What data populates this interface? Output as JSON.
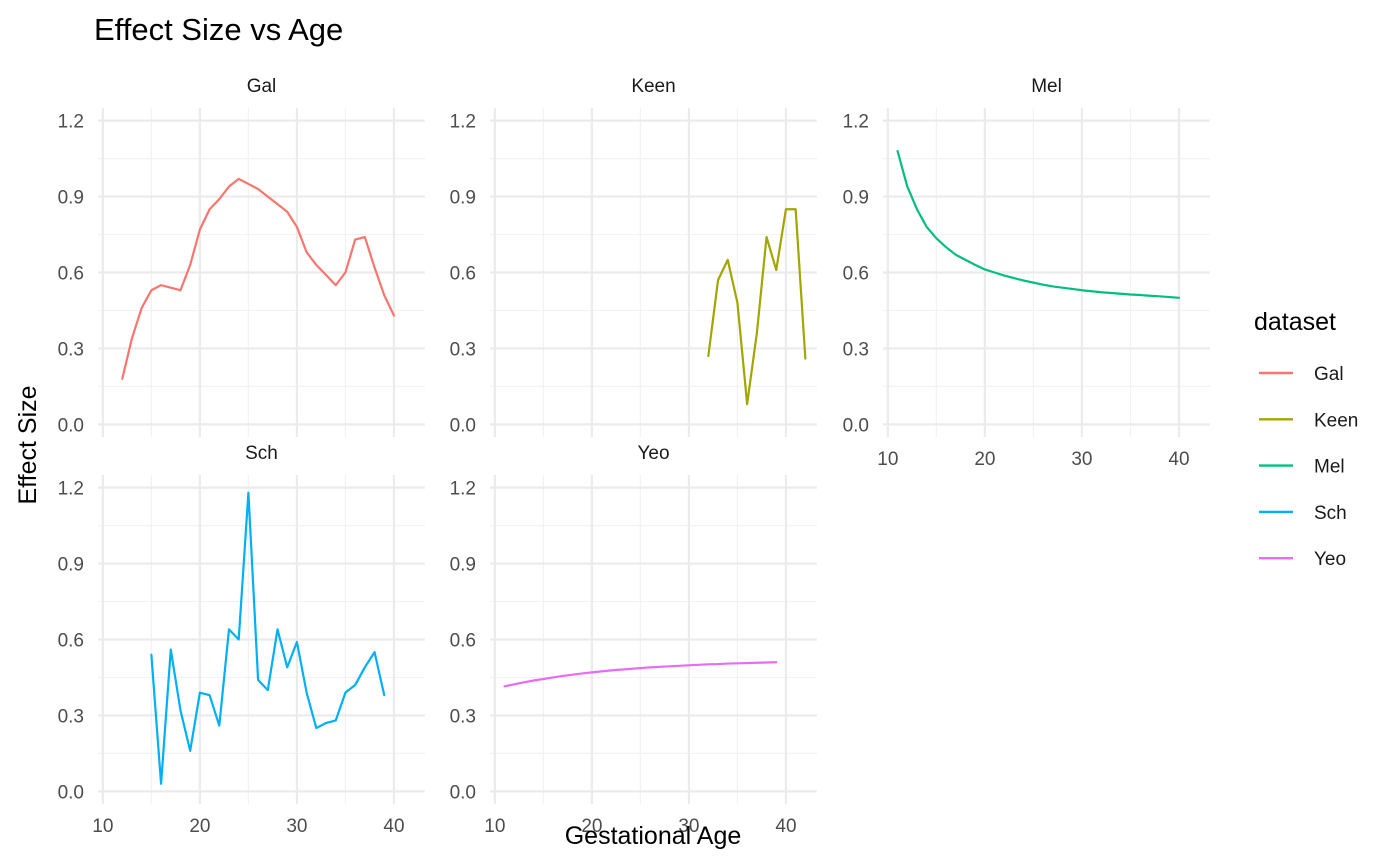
{
  "chart_data": {
    "type": "line",
    "title": "Effect Size vs Age",
    "xlabel": "Gestational Age",
    "ylabel": "Effect Size",
    "xlim": [
      9.5,
      43.2
    ],
    "ylim": [
      -0.05,
      1.25
    ],
    "x_ticks": [
      "10",
      "20",
      "30",
      "40"
    ],
    "x_tick_values": [
      10,
      20,
      30,
      40
    ],
    "y_ticks": [
      "0.0",
      "0.3",
      "0.6",
      "0.9",
      "1.2"
    ],
    "y_tick_values": [
      0.0,
      0.3,
      0.6,
      0.9,
      1.2
    ],
    "grid": true,
    "legend": {
      "title": "dataset",
      "position": "right"
    },
    "series": [
      {
        "name": "Gal",
        "color": "#F8766D",
        "x": [
          12,
          13,
          14,
          15,
          16,
          17,
          18,
          19,
          20,
          21,
          22,
          23,
          24,
          25,
          26,
          27,
          28,
          29,
          30,
          31,
          32,
          33,
          34,
          35,
          36,
          37,
          38,
          39,
          40
        ],
        "y": [
          0.18,
          0.34,
          0.46,
          0.53,
          0.55,
          0.54,
          0.53,
          0.63,
          0.77,
          0.85,
          0.89,
          0.94,
          0.97,
          0.95,
          0.93,
          0.9,
          0.87,
          0.84,
          0.78,
          0.68,
          0.63,
          0.59,
          0.55,
          0.6,
          0.73,
          0.74,
          0.62,
          0.51,
          0.43
        ]
      },
      {
        "name": "Keen",
        "color": "#A3A500",
        "x": [
          32,
          33,
          34,
          35,
          36,
          37,
          38,
          39,
          40,
          41,
          42
        ],
        "y": [
          0.27,
          0.57,
          0.65,
          0.48,
          0.08,
          0.36,
          0.74,
          0.61,
          0.85,
          0.85,
          0.26
        ]
      },
      {
        "name": "Mel",
        "color": "#00BF7D",
        "x": [
          11,
          12,
          13,
          14,
          15,
          16,
          17,
          18,
          19,
          20,
          21,
          22,
          23,
          24,
          25,
          26,
          27,
          28,
          29,
          30,
          31,
          32,
          33,
          34,
          35,
          36,
          37,
          38,
          39,
          40
        ],
        "y": [
          1.08,
          0.94,
          0.85,
          0.78,
          0.735,
          0.7,
          0.67,
          0.65,
          0.63,
          0.612,
          0.6,
          0.588,
          0.578,
          0.568,
          0.56,
          0.552,
          0.545,
          0.54,
          0.535,
          0.53,
          0.526,
          0.522,
          0.519,
          0.516,
          0.513,
          0.511,
          0.508,
          0.506,
          0.503,
          0.5
        ]
      },
      {
        "name": "Sch",
        "color": "#00B0F6",
        "x": [
          15,
          16,
          17,
          18,
          19,
          20,
          21,
          22,
          23,
          24,
          25,
          26,
          27,
          28,
          29,
          30,
          31,
          32,
          33,
          34,
          35,
          36,
          37,
          38,
          39
        ],
        "y": [
          0.54,
          0.03,
          0.56,
          0.32,
          0.16,
          0.39,
          0.38,
          0.26,
          0.64,
          0.6,
          1.18,
          0.44,
          0.4,
          0.64,
          0.49,
          0.59,
          0.39,
          0.25,
          0.27,
          0.28,
          0.39,
          0.42,
          0.49,
          0.55,
          0.38
        ]
      },
      {
        "name": "Yeo",
        "color": "#E76BF3",
        "x": [
          11,
          12,
          13,
          14,
          15,
          16,
          17,
          18,
          19,
          20,
          21,
          22,
          23,
          24,
          25,
          26,
          27,
          28,
          29,
          30,
          31,
          32,
          33,
          34,
          35,
          36,
          37,
          38,
          39
        ],
        "y": [
          0.415,
          0.423,
          0.431,
          0.438,
          0.444,
          0.45,
          0.456,
          0.461,
          0.466,
          0.47,
          0.474,
          0.478,
          0.481,
          0.484,
          0.487,
          0.49,
          0.492,
          0.494,
          0.496,
          0.498,
          0.5,
          0.502,
          0.503,
          0.505,
          0.506,
          0.507,
          0.508,
          0.509,
          0.51
        ]
      }
    ]
  }
}
